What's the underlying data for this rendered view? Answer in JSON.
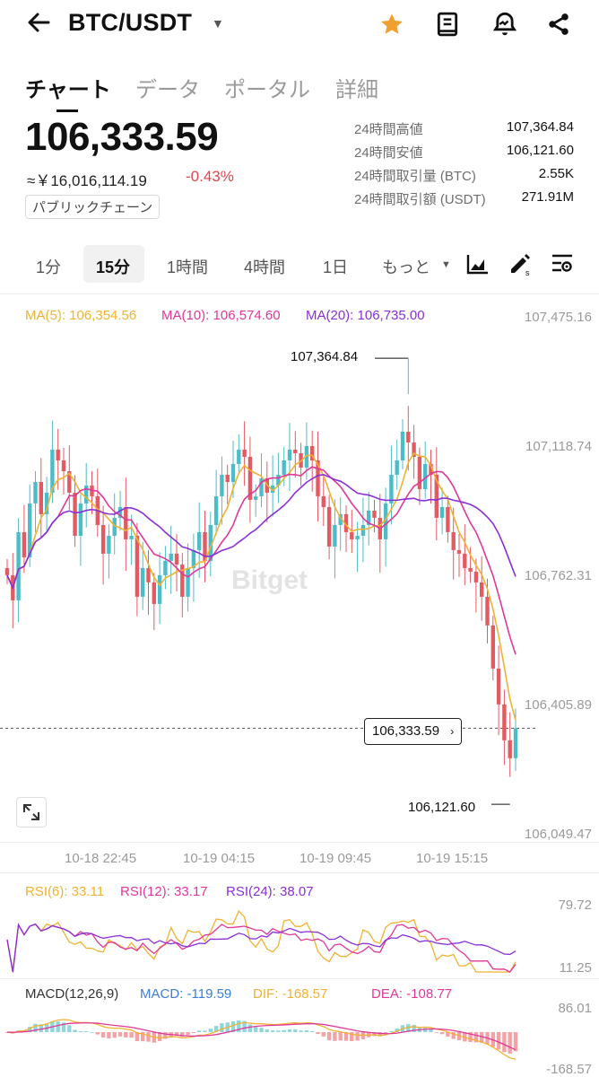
{
  "header": {
    "pair": "BTC/USDT",
    "back_icon": "arrow-left-icon",
    "icons": [
      "star-icon",
      "book-icon",
      "alert-bell-icon",
      "share-icon"
    ]
  },
  "tabs": [
    "チャート",
    "データ",
    "ポータル",
    "詳細"
  ],
  "price": {
    "last": "106,333.59",
    "jpy": "≈￥16,016,114.19",
    "change": "-0.43%",
    "chain_label": "パブリックチェーン"
  },
  "stats": [
    {
      "label": "24時間高値",
      "value": "107,364.84"
    },
    {
      "label": "24時間安値",
      "value": "106,121.60"
    },
    {
      "label": "24時間取引量 (BTC)",
      "value": "2.55K"
    },
    {
      "label": "24時間取引額 (USDT)",
      "value": "271.91M"
    }
  ],
  "intervals": [
    "1分",
    "15分",
    "1時間",
    "4時間",
    "1日",
    "もっと"
  ],
  "interval_selected": "15分",
  "toolbar_icons": [
    "chart-type-icon",
    "draw-icon",
    "settings-icon"
  ],
  "ma_legend": {
    "ma5": "MA(5): 106,354.56",
    "ma10": "MA(10): 106,574.60",
    "ma20": "MA(20): 106,735.00"
  },
  "watermark": "Bitget",
  "colors": {
    "up": "#4dbcc9",
    "down": "#e35b62",
    "ma5": "#f0b232",
    "ma10": "#e0389a",
    "ma20": "#8b2fd6",
    "accent": "#f0a030"
  },
  "chart_data": {
    "type": "candlestick",
    "y_ticks": [
      "107,475.16",
      "107,118.74",
      "106,762.31",
      "106,405.89",
      "106,049.47"
    ],
    "ylim": [
      106049.47,
      107475.16
    ],
    "x_ticks": [
      "10-18 22:45",
      "10-19 04:15",
      "10-19 09:45",
      "10-19 15:15"
    ],
    "high_label": "107,364.84",
    "low_label": "106,121.60",
    "last_price_label": "106,333.59",
    "high": 107364.84,
    "low": 106121.6,
    "last": 106333.59,
    "close_series": [
      106760,
      106690,
      106880,
      106810,
      106960,
      107020,
      106930,
      106990,
      107110,
      107080,
      107050,
      106990,
      106870,
      106960,
      107010,
      106980,
      106900,
      106820,
      106870,
      106920,
      106950,
      106860,
      106870,
      106700,
      106780,
      106740,
      106680,
      106760,
      106800,
      106820,
      106790,
      106700,
      106780,
      106830,
      106880,
      106800,
      106900,
      106980,
      107040,
      107020,
      107070,
      107110,
      107090,
      106970,
      106980,
      107030,
      106990,
      107010,
      107040,
      107080,
      107110,
      107100,
      107060,
      107120,
      107080,
      106980,
      106950,
      106840,
      106900,
      106930,
      106880,
      106860,
      106870,
      106900,
      106940,
      106920,
      106860,
      106960,
      107040,
      107080,
      107160,
      107130,
      107090,
      107000,
      107070,
      107040,
      106920,
      106950,
      106880,
      106830,
      106820,
      106780,
      106770,
      106740,
      106700,
      106620,
      106500,
      106400,
      106300,
      106250,
      106333.59
    ],
    "rsi": {
      "legend": [
        "RSI(6): 33.11",
        "RSI(12): 33.17",
        "RSI(24): 38.07"
      ],
      "axis": [
        "79.72",
        "11.25"
      ]
    },
    "macd": {
      "legend": [
        "MACD(12,26,9)",
        "MACD: -119.59",
        "DIF: -168.57",
        "DEA: -108.77"
      ],
      "axis": [
        "86.01",
        "-168.57"
      ]
    }
  }
}
